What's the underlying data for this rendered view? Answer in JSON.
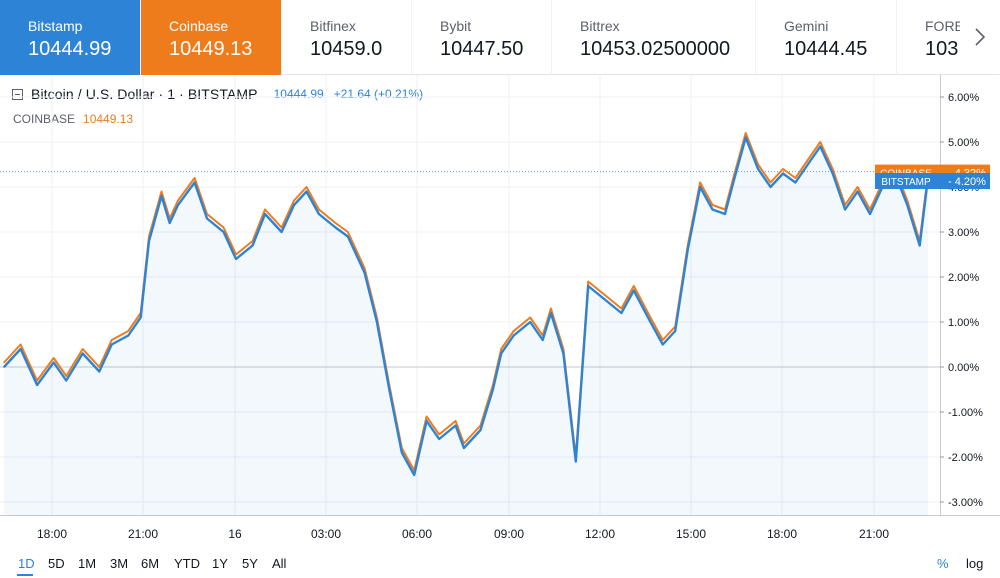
{
  "exchange_tabs": [
    {
      "name": "Bitstamp",
      "price": "10444.99",
      "style": "blue"
    },
    {
      "name": "Coinbase",
      "price": "10449.13",
      "style": "orange"
    },
    {
      "name": "Bitfinex",
      "price": "10459.0",
      "style": "plain"
    },
    {
      "name": "Bybit",
      "price": "10447.50",
      "style": "plain"
    },
    {
      "name": "Bittrex",
      "price": "10453.02500000",
      "style": "plain"
    },
    {
      "name": "Gemini",
      "price": "10444.45",
      "style": "plain"
    },
    {
      "name": "FORE",
      "price": "103",
      "style": "plain"
    }
  ],
  "legend": {
    "symbol": "Bitcoin / U.S. Dollar · 1 · BITSTAMP",
    "last": "10444.99",
    "change": "+21.64 (+0.21%)",
    "compare_label": "COINBASE",
    "compare_value": "10449.13"
  },
  "ranges": [
    "1D",
    "5D",
    "1M",
    "3M",
    "6M",
    "YTD",
    "1Y",
    "5Y",
    "All"
  ],
  "active_range": "1D",
  "scale_buttons": {
    "percent": "%",
    "log": "log"
  },
  "colors": {
    "bitstamp": "#2d83d6",
    "coinbase": "#ef7c1c",
    "grid": "#eef0f4",
    "axis_text": "#131722"
  },
  "chart_data": {
    "type": "line",
    "y_unit": "%",
    "ylim": [
      -3.3,
      6.3
    ],
    "y_ticks": [
      "6.00%",
      "5.00%",
      "4.00%",
      "3.00%",
      "2.00%",
      "1.00%",
      "0.00%",
      "-1.00%",
      "-2.00%",
      "-3.00%"
    ],
    "x_ticks": [
      "18:00",
      "21:00",
      "16",
      "03:00",
      "06:00",
      "09:00",
      "12:00",
      "15:00",
      "18:00",
      "21:00"
    ],
    "grid": true,
    "series": [
      {
        "name": "BITSTAMP",
        "color": "#2d83d6",
        "last_label": "4.20%",
        "x": [
          0,
          0.4,
          0.8,
          1.2,
          1.5,
          1.9,
          2.3,
          2.6,
          3.0,
          3.3,
          3.5,
          3.8,
          4.0,
          4.2,
          4.6,
          4.9,
          5.3,
          5.6,
          6.0,
          6.3,
          6.7,
          7.0,
          7.3,
          7.6,
          8.0,
          8.3,
          8.7,
          9.0,
          9.3,
          9.6,
          9.9,
          10.2,
          10.5,
          10.9,
          11.1,
          11.5,
          11.8,
          12.0,
          12.3,
          12.7,
          13.0,
          13.2,
          13.5,
          13.8,
          14.1,
          14.5,
          14.9,
          15.2,
          15.6,
          15.9,
          16.2,
          16.5,
          16.8,
          17.1,
          17.4,
          17.6,
          17.9,
          18.2,
          18.5,
          18.8,
          19.1,
          19.4,
          19.7,
          20.0,
          20.3,
          20.6,
          20.9,
          21.2,
          21.5,
          21.8,
          22.1,
          22.3
        ],
        "values": [
          0.0,
          0.4,
          -0.4,
          0.1,
          -0.3,
          0.3,
          -0.1,
          0.5,
          0.7,
          1.1,
          2.8,
          3.8,
          3.2,
          3.6,
          4.1,
          3.3,
          3.0,
          2.4,
          2.7,
          3.4,
          3.0,
          3.6,
          3.9,
          3.4,
          3.1,
          2.9,
          2.1,
          1.0,
          -0.5,
          -1.9,
          -2.4,
          -1.2,
          -1.6,
          -1.3,
          -1.8,
          -1.4,
          -0.5,
          0.3,
          0.7,
          1.0,
          0.6,
          1.2,
          0.3,
          -2.1,
          1.8,
          1.5,
          1.2,
          1.7,
          1.0,
          0.5,
          0.8,
          2.6,
          4.0,
          3.5,
          3.4,
          4.1,
          5.1,
          4.4,
          4.0,
          4.3,
          4.1,
          4.5,
          4.9,
          4.3,
          3.5,
          3.9,
          3.4,
          4.0,
          4.3,
          3.6,
          2.7,
          4.2
        ]
      },
      {
        "name": "COINBASE",
        "color": "#ef7c1c",
        "last_label": "4.32%",
        "x": [
          0,
          0.4,
          0.8,
          1.2,
          1.5,
          1.9,
          2.3,
          2.6,
          3.0,
          3.3,
          3.5,
          3.8,
          4.0,
          4.2,
          4.6,
          4.9,
          5.3,
          5.6,
          6.0,
          6.3,
          6.7,
          7.0,
          7.3,
          7.6,
          8.0,
          8.3,
          8.7,
          9.0,
          9.3,
          9.6,
          9.9,
          10.2,
          10.5,
          10.9,
          11.1,
          11.5,
          11.8,
          12.0,
          12.3,
          12.7,
          13.0,
          13.2,
          13.5,
          13.8,
          14.1,
          14.5,
          14.9,
          15.2,
          15.6,
          15.9,
          16.2,
          16.5,
          16.8,
          17.1,
          17.4,
          17.6,
          17.9,
          18.2,
          18.5,
          18.8,
          19.1,
          19.4,
          19.7,
          20.0,
          20.3,
          20.6,
          20.9,
          21.2,
          21.5,
          21.8,
          22.1,
          22.3
        ],
        "values": [
          0.1,
          0.5,
          -0.3,
          0.2,
          -0.2,
          0.4,
          0.0,
          0.6,
          0.8,
          1.2,
          2.9,
          3.9,
          3.3,
          3.7,
          4.2,
          3.4,
          3.1,
          2.5,
          2.8,
          3.5,
          3.1,
          3.7,
          4.0,
          3.5,
          3.2,
          3.0,
          2.2,
          1.1,
          -0.4,
          -1.8,
          -2.3,
          -1.1,
          -1.5,
          -1.2,
          -1.7,
          -1.3,
          -0.4,
          0.4,
          0.8,
          1.1,
          0.7,
          1.3,
          0.4,
          -2.0,
          1.9,
          1.6,
          1.3,
          1.8,
          1.1,
          0.6,
          0.9,
          2.7,
          4.1,
          3.6,
          3.5,
          4.2,
          5.2,
          4.5,
          4.1,
          4.4,
          4.2,
          4.6,
          5.0,
          4.4,
          3.6,
          4.0,
          3.5,
          4.1,
          4.4,
          3.7,
          2.8,
          4.3
        ]
      }
    ]
  }
}
